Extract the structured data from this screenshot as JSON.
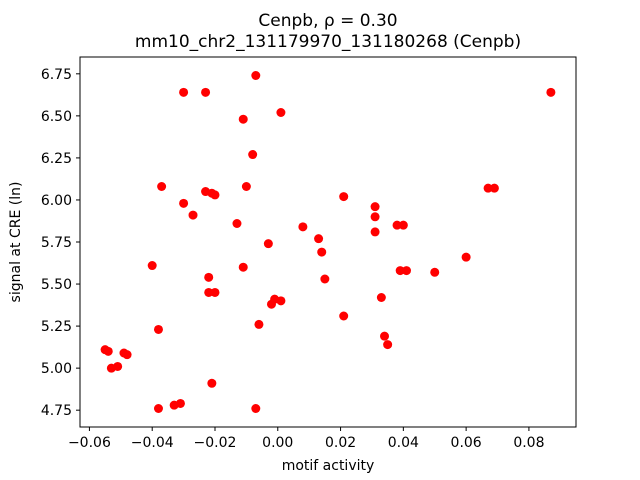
{
  "chart_data": {
    "type": "scatter",
    "title": "Cenpb, ρ = 0.30",
    "subtitle": "mm10_chr2_131179970_131180268 (Cenpb)",
    "xlabel": "motif activity",
    "ylabel": "signal at CRE (ln)",
    "xlim": [
      -0.063,
      0.095
    ],
    "ylim": [
      4.65,
      6.85
    ],
    "xticks": [
      -0.06,
      -0.04,
      -0.02,
      0.0,
      0.02,
      0.04,
      0.06,
      0.08
    ],
    "yticks": [
      4.75,
      5.0,
      5.25,
      5.5,
      5.75,
      6.0,
      6.25,
      6.5,
      6.75
    ],
    "grid": false,
    "legend": "none",
    "marker_color": "#ff0000",
    "marker_radius": 4.5,
    "points": [
      [
        -0.055,
        5.11
      ],
      [
        -0.054,
        5.1
      ],
      [
        -0.053,
        5.0
      ],
      [
        -0.051,
        5.01
      ],
      [
        -0.049,
        5.09
      ],
      [
        -0.048,
        5.08
      ],
      [
        -0.04,
        5.61
      ],
      [
        -0.038,
        4.76
      ],
      [
        -0.038,
        5.23
      ],
      [
        -0.037,
        6.08
      ],
      [
        -0.033,
        4.78
      ],
      [
        -0.031,
        4.79
      ],
      [
        -0.03,
        6.64
      ],
      [
        -0.03,
        5.98
      ],
      [
        -0.027,
        5.91
      ],
      [
        -0.023,
        6.64
      ],
      [
        -0.023,
        6.05
      ],
      [
        -0.021,
        6.04
      ],
      [
        -0.02,
        6.03
      ],
      [
        -0.022,
        5.54
      ],
      [
        -0.022,
        5.45
      ],
      [
        -0.02,
        5.45
      ],
      [
        -0.021,
        4.91
      ],
      [
        -0.013,
        5.86
      ],
      [
        -0.011,
        6.48
      ],
      [
        -0.01,
        6.08
      ],
      [
        -0.011,
        5.6
      ],
      [
        -0.008,
        6.27
      ],
      [
        -0.007,
        6.74
      ],
      [
        -0.006,
        5.26
      ],
      [
        -0.007,
        4.76
      ],
      [
        -0.003,
        5.74
      ],
      [
        -0.002,
        5.38
      ],
      [
        -0.001,
        5.41
      ],
      [
        0.001,
        5.4
      ],
      [
        0.001,
        6.52
      ],
      [
        0.008,
        5.84
      ],
      [
        0.013,
        5.77
      ],
      [
        0.014,
        5.69
      ],
      [
        0.015,
        5.53
      ],
      [
        0.021,
        6.02
      ],
      [
        0.021,
        5.31
      ],
      [
        0.031,
        5.96
      ],
      [
        0.031,
        5.9
      ],
      [
        0.031,
        5.81
      ],
      [
        0.033,
        5.42
      ],
      [
        0.034,
        5.19
      ],
      [
        0.035,
        5.14
      ],
      [
        0.038,
        5.85
      ],
      [
        0.04,
        5.85
      ],
      [
        0.039,
        5.58
      ],
      [
        0.041,
        5.58
      ],
      [
        0.05,
        5.57
      ],
      [
        0.06,
        5.66
      ],
      [
        0.067,
        6.07
      ],
      [
        0.069,
        6.07
      ],
      [
        0.087,
        6.64
      ]
    ]
  }
}
